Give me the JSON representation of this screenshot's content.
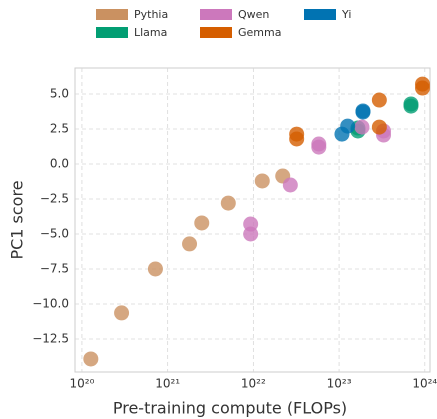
{
  "chart_data": {
    "type": "scatter",
    "xlabel": "Pre-training compute (FLOPs)",
    "ylabel": "PC1 score",
    "xscale": "log",
    "grid": true,
    "legend": "top",
    "legend_columns": 3,
    "xlim": [
      8.3e+19,
      1.15e+24
    ],
    "xticks": [
      {
        "value": 1e+20,
        "label": "10²⁰"
      },
      {
        "value": 1e+21,
        "label": "10²¹"
      },
      {
        "value": 1e+22,
        "label": "10²²"
      },
      {
        "value": 1e+23,
        "label": "10²³"
      },
      {
        "value": 1e+24,
        "label": "10²⁴"
      }
    ],
    "ylim": [
      -14.86,
      6.86
    ],
    "yticks": [
      {
        "value": 5,
        "label": "5.0"
      },
      {
        "value": 2.5,
        "label": "2.5"
      },
      {
        "value": 0,
        "label": "0.0"
      },
      {
        "value": -2.5,
        "label": "−2.5"
      },
      {
        "value": -5,
        "label": "−5.0"
      },
      {
        "value": -7.5,
        "label": "−7.5"
      },
      {
        "value": -10,
        "label": "−10.0"
      },
      {
        "value": -12.5,
        "label": "−12.5"
      }
    ],
    "series": [
      {
        "name": "Pythia",
        "color": "#ca9161",
        "x": [
          1.27e+20,
          2.9e+20,
          7.2e+20,
          1.8e+21,
          2.5e+21,
          5.1e+21,
          1.27e+22,
          2.2e+22
        ],
        "values": [
          -13.93,
          -10.64,
          -7.5,
          -5.71,
          -4.21,
          -2.79,
          -1.21,
          -0.86
        ]
      },
      {
        "name": "Llama",
        "color": "#029e73",
        "x": [
          1.66e+23,
          1.66e+23,
          6.9e+23,
          6.9e+23
        ],
        "values": [
          2.36,
          2.57,
          4.29,
          4.14
        ]
      },
      {
        "name": "Qwen",
        "color": "#cc78bc",
        "x": [
          9.3e+21,
          9.3e+21,
          2.7e+22,
          5.8e+22,
          5.8e+22,
          1.85e+23,
          3.3e+23,
          3.3e+23
        ],
        "values": [
          -4.29,
          -5.0,
          -1.5,
          1.21,
          1.43,
          2.64,
          2.07,
          2.36
        ]
      },
      {
        "name": "Gemma",
        "color": "#d55e00",
        "x": [
          3.2e+22,
          3.2e+22,
          2.95e+23,
          2.95e+23,
          9.4e+23,
          9.4e+23
        ],
        "values": [
          2.14,
          1.79,
          4.57,
          2.64,
          5.71,
          5.43
        ]
      },
      {
        "name": "Yi",
        "color": "#0173b2",
        "x": [
          1.08e+23,
          1.26e+23,
          1.9e+23,
          1.9e+23
        ],
        "values": [
          2.14,
          2.71,
          3.71,
          3.79
        ]
      }
    ]
  }
}
